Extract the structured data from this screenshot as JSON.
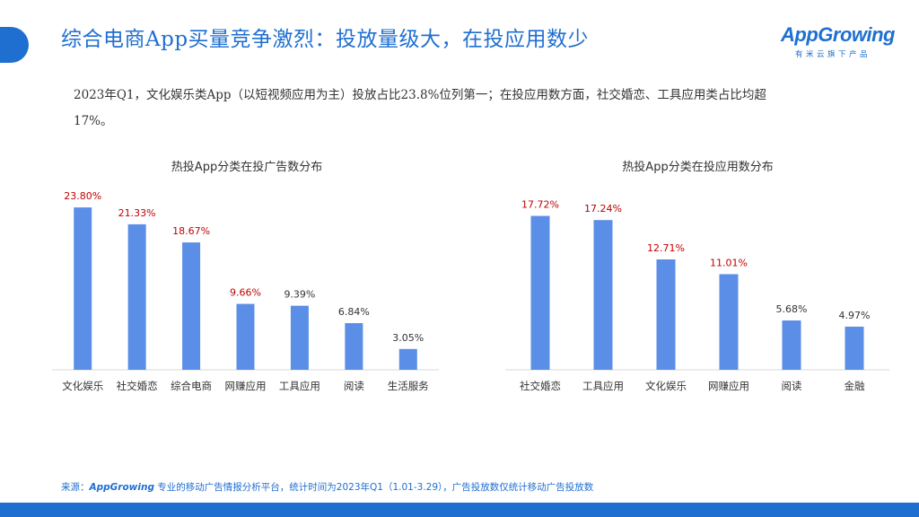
{
  "header": {
    "title": "综合电商App买量竞争激烈：投放量级大，在投应用数少",
    "logo_text": "AppGrowing",
    "logo_subtitle": "有米云旗下产品"
  },
  "summary": {
    "text": "2023年Q1，文化娱乐类App（以短视频应用为主）投放占比23.8%位列第一；在投应用数方面，社交婚恋、工具应用类占比均超17%。"
  },
  "footer": {
    "source_prefix": "来源：",
    "source_brand": "AppGrowing",
    "source_text": " 专业的移动广告情报分析平台，统计时间为2023年Q1（1.01-3.29），广告投放数仅统计移动广告投放数"
  },
  "colors": {
    "bar": "#5b8ee6",
    "highlight_label": "#c00000",
    "normal_label": "#333333",
    "accent": "#1f6fd1"
  },
  "chart_data": [
    {
      "type": "bar",
      "title": "热投App分类在投广告数分布",
      "categories": [
        "文化娱乐",
        "社交婚恋",
        "综合电商",
        "网赚应用",
        "工具应用",
        "阅读",
        "生活服务"
      ],
      "values": [
        23.8,
        21.33,
        18.67,
        9.66,
        9.39,
        6.84,
        3.05
      ],
      "data_labels": [
        "23.80%",
        "21.33%",
        "18.67%",
        "9.66%",
        "9.39%",
        "6.84%",
        "3.05%"
      ],
      "highlighted": [
        true,
        true,
        true,
        true,
        false,
        false,
        false
      ],
      "ylim": [
        0,
        25
      ]
    },
    {
      "type": "bar",
      "title": "热投App分类在投应用数分布",
      "categories": [
        "社交婚恋",
        "工具应用",
        "文化娱乐",
        "网赚应用",
        "阅读",
        "金融"
      ],
      "values": [
        17.72,
        17.24,
        12.71,
        11.01,
        5.68,
        4.97
      ],
      "data_labels": [
        "17.72%",
        "17.24%",
        "12.71%",
        "11.01%",
        "5.68%",
        "4.97%"
      ],
      "highlighted": [
        true,
        true,
        true,
        true,
        false,
        false
      ],
      "ylim": [
        0,
        18.5
      ]
    }
  ]
}
